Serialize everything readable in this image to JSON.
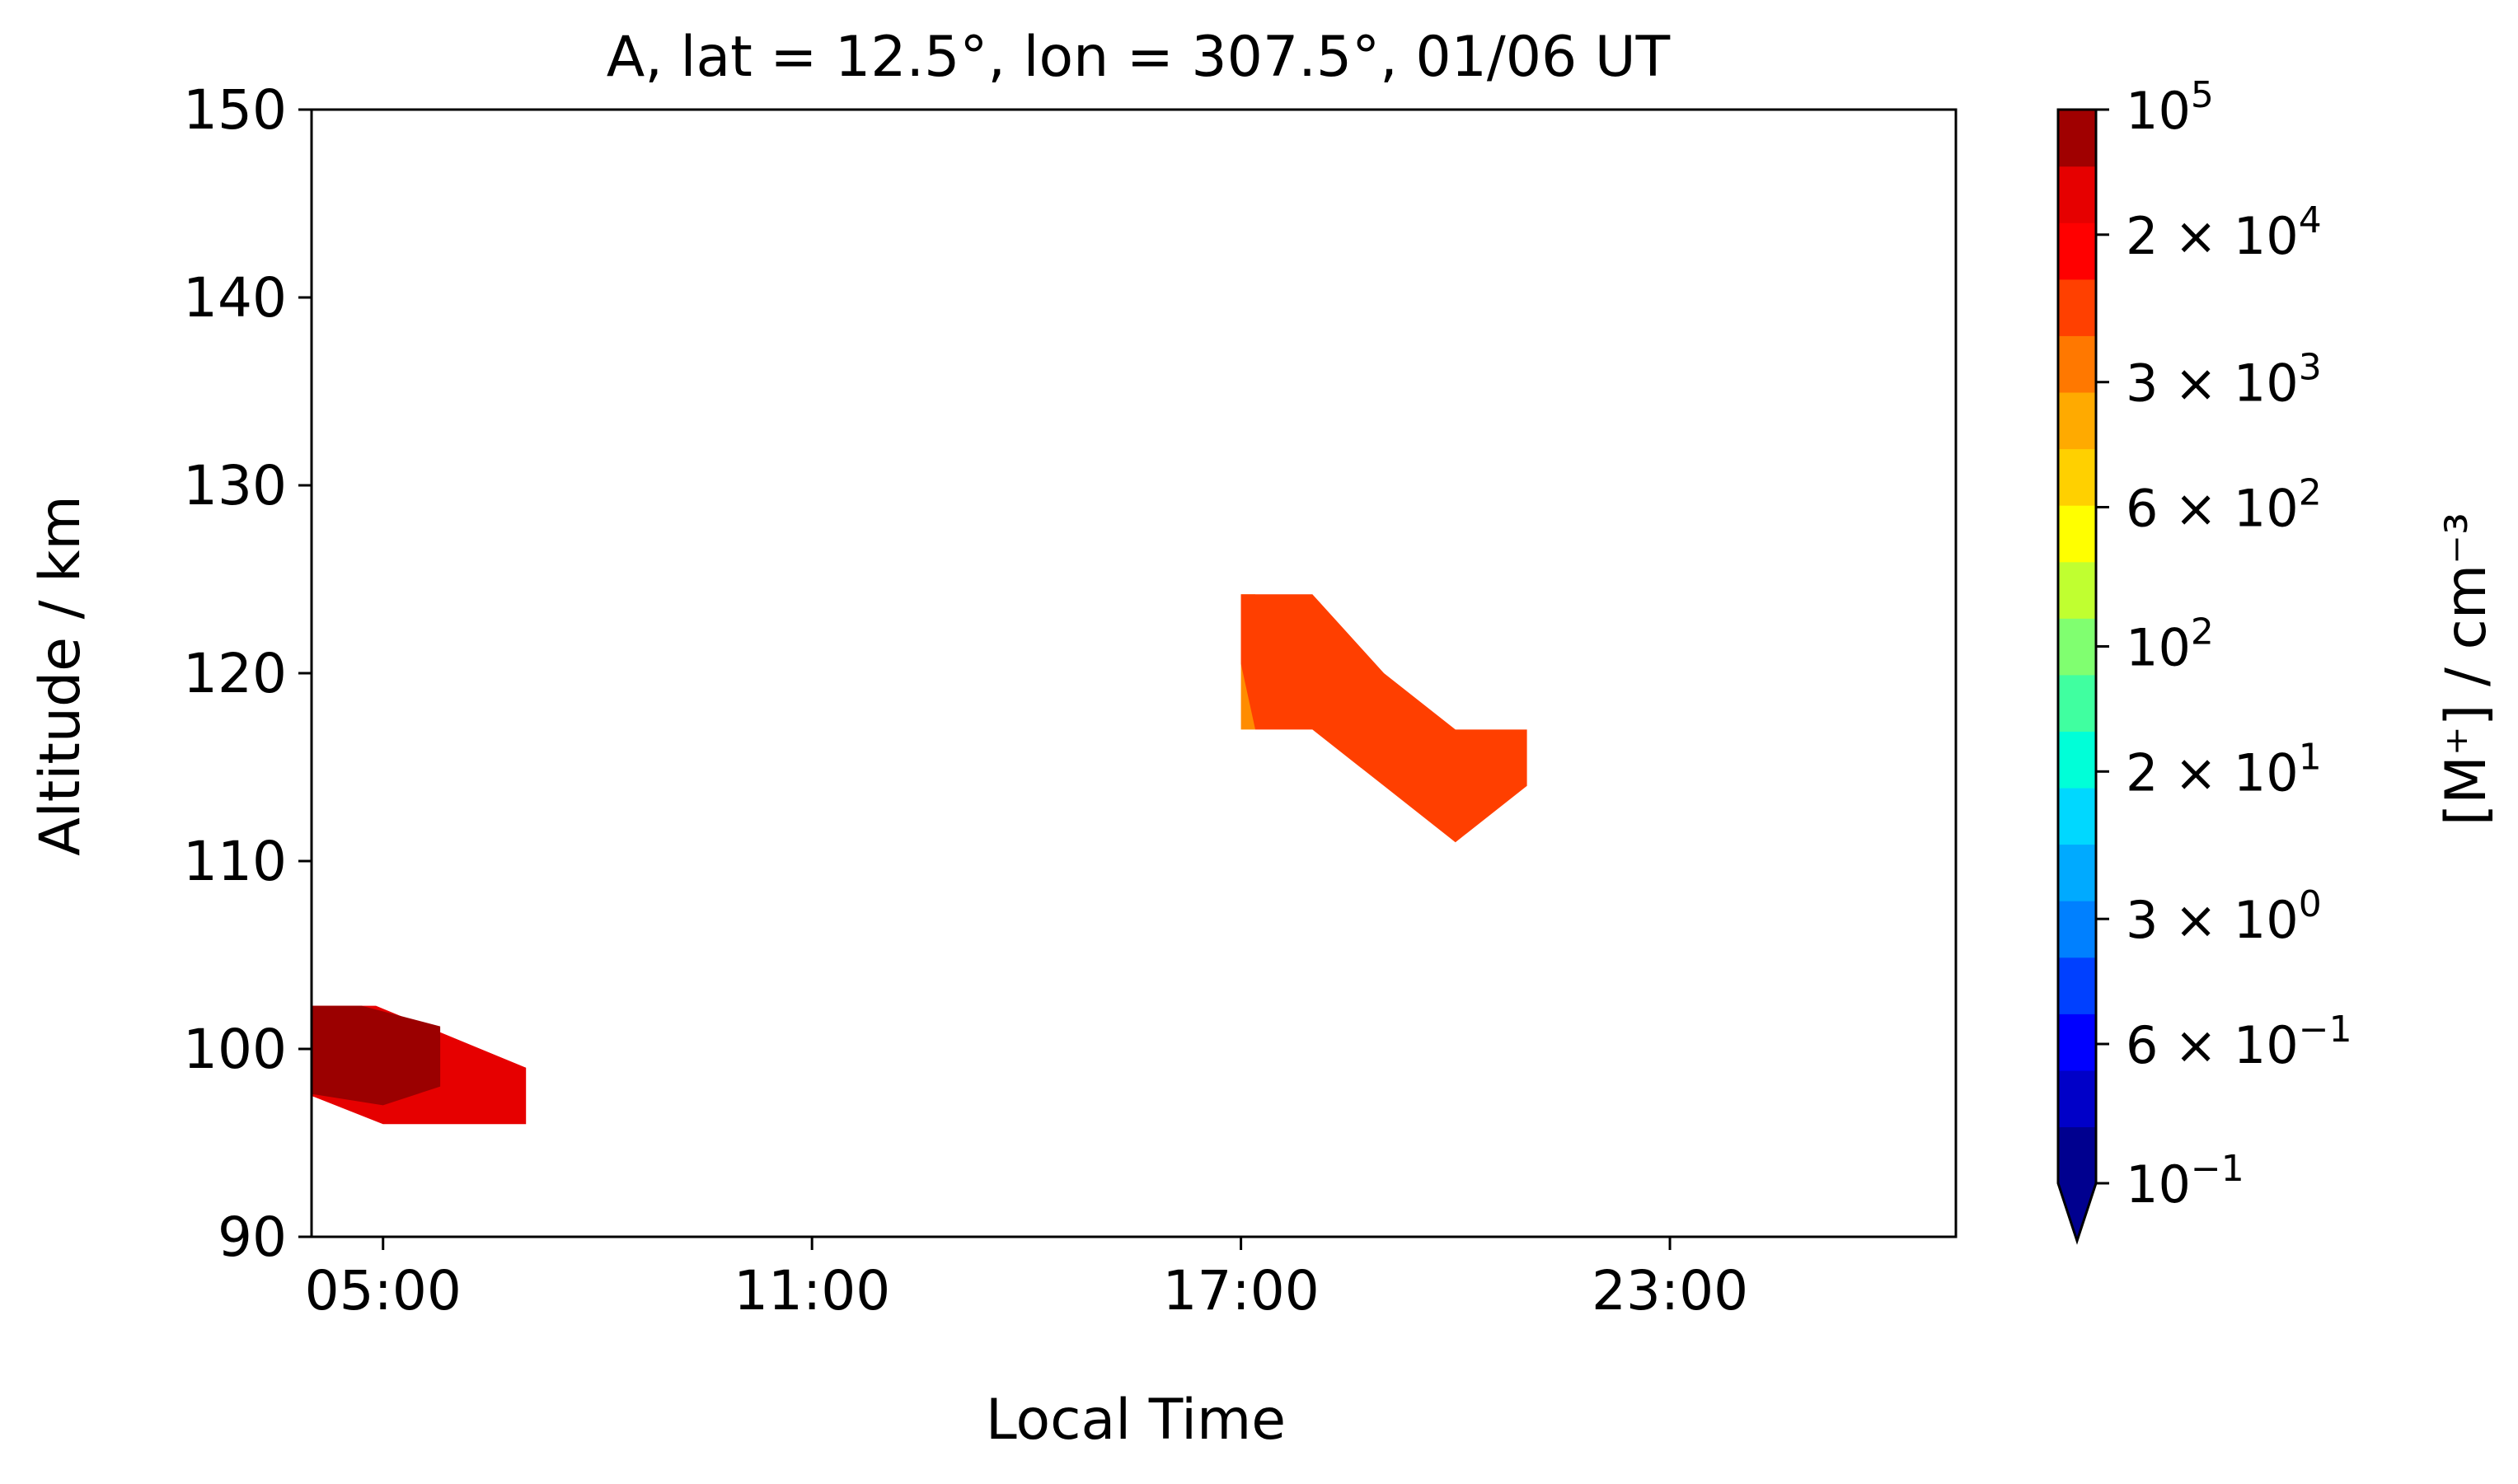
{
  "chart_data": {
    "type": "heatmap",
    "title": "A, lat = 12.5°, lon = 307.5°, 01/06 UT",
    "xlabel": "Local Time",
    "ylabel": "Altitude / km",
    "xlim": [
      4.0,
      27.0
    ],
    "ylim": [
      90,
      150
    ],
    "x_ticks": [
      {
        "value": 5,
        "label": "05:00"
      },
      {
        "value": 11,
        "label": "11:00"
      },
      {
        "value": 17,
        "label": "17:00"
      },
      {
        "value": 23,
        "label": "23:00"
      }
    ],
    "y_ticks": [
      {
        "value": 90,
        "label": "90"
      },
      {
        "value": 100,
        "label": "100"
      },
      {
        "value": 110,
        "label": "110"
      },
      {
        "value": 120,
        "label": "120"
      },
      {
        "value": 130,
        "label": "130"
      },
      {
        "value": 140,
        "label": "140"
      },
      {
        "value": 150,
        "label": "150"
      }
    ],
    "grid": false,
    "contour_regions": [
      {
        "level": "1e4 – 5e4",
        "color": "#e60000",
        "points": [
          [
            4.0,
            102.3
          ],
          [
            4.9,
            102.3
          ],
          [
            7.0,
            99.0
          ],
          [
            7.0,
            96.0
          ],
          [
            5.0,
            96.0
          ],
          [
            4.0,
            97.5
          ]
        ]
      },
      {
        "level": "5e4 – 1e5",
        "color": "#9b0000",
        "points": [
          [
            4.0,
            102.3
          ],
          [
            4.7,
            102.3
          ],
          [
            5.8,
            101.2
          ],
          [
            5.8,
            98.0
          ],
          [
            5.0,
            97.0
          ],
          [
            4.0,
            97.6
          ]
        ]
      },
      {
        "level": "3e3 – 6e3",
        "color": "#ff8c00",
        "points": [
          [
            17.0,
            124.2
          ],
          [
            17.2,
            124.2
          ],
          [
            17.2,
            117.0
          ],
          [
            17.0,
            117.0
          ]
        ]
      },
      {
        "level": "6e3 – 2e4",
        "color": "#ff3f00",
        "points": [
          [
            17.0,
            124.2
          ],
          [
            18.0,
            124.2
          ],
          [
            19.0,
            120.0
          ],
          [
            20.0,
            117.0
          ],
          [
            21.0,
            117.0
          ],
          [
            21.0,
            114.0
          ],
          [
            20.0,
            111.0
          ],
          [
            19.0,
            114.0
          ],
          [
            18.0,
            117.0
          ],
          [
            17.2,
            117.0
          ],
          [
            17.0,
            120.5
          ]
        ]
      }
    ],
    "colorbar": {
      "label": "[M⁺] / cm⁻³",
      "scale": "log",
      "range": [
        0.1,
        100000
      ],
      "extend": "min",
      "colors": [
        "#00008f",
        "#0000c8",
        "#0000ff",
        "#0040ff",
        "#0080ff",
        "#00aaff",
        "#00d8ff",
        "#00ffd8",
        "#40ffa0",
        "#80ff70",
        "#c0ff30",
        "#ffff00",
        "#ffd000",
        "#ffaa00",
        "#ff7800",
        "#ff4000",
        "#ff0000",
        "#e60000",
        "#a00000"
      ],
      "ticks": [
        {
          "value": 0.1,
          "mantissa": "",
          "base": "10",
          "exp": "−1"
        },
        {
          "value": 0.6,
          "mantissa": "6 × ",
          "base": "10",
          "exp": "−1"
        },
        {
          "value": 3,
          "mantissa": "3 × ",
          "base": "10",
          "exp": "0"
        },
        {
          "value": 20,
          "mantissa": "2 × ",
          "base": "10",
          "exp": "1"
        },
        {
          "value": 100,
          "mantissa": "",
          "base": "10",
          "exp": "2"
        },
        {
          "value": 600,
          "mantissa": "6 × ",
          "base": "10",
          "exp": "2"
        },
        {
          "value": 3000,
          "mantissa": "3 × ",
          "base": "10",
          "exp": "3"
        },
        {
          "value": 20000,
          "mantissa": "2 × ",
          "base": "10",
          "exp": "4"
        },
        {
          "value": 100000,
          "mantissa": "",
          "base": "10",
          "exp": "5"
        }
      ]
    }
  }
}
